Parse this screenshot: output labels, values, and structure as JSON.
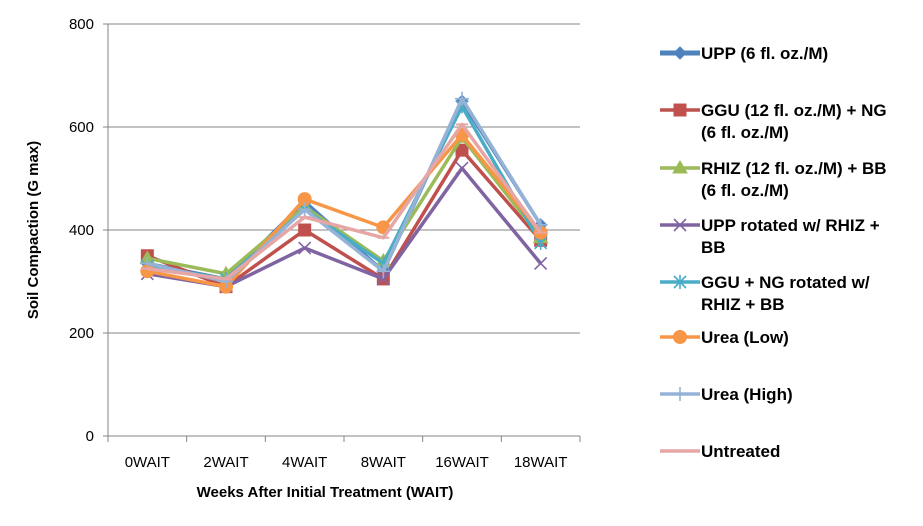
{
  "chart_data": {
    "type": "line",
    "title": "",
    "xlabel": "Weeks After Initial Treatment (WAIT)",
    "ylabel": "Soil Compaction (G max)",
    "categories": [
      "0WAIT",
      "2WAIT",
      "4WAIT",
      "8WAIT",
      "16WAIT",
      "18WAIT"
    ],
    "ylim": [
      0,
      800
    ],
    "yticks": [
      0,
      200,
      400,
      600,
      800
    ],
    "grid": true,
    "legend_position": "right",
    "series": [
      {
        "name": "UPP (6 fl. oz./M)",
        "color": "#4f81bd",
        "marker": "diamond",
        "values": [
          335,
          305,
          455,
          320,
          650,
          410
        ]
      },
      {
        "name": "GGU (12 fl. oz./M) + NG (6 fl. oz./M)",
        "color": "#c0504d",
        "marker": "square",
        "values": [
          350,
          290,
          400,
          305,
          555,
          380
        ]
      },
      {
        "name": "RHIZ (12 fl. oz./M) + BB (6 fl. oz./M)",
        "color": "#9bbb59",
        "marker": "triangle",
        "values": [
          345,
          315,
          445,
          340,
          580,
          385
        ]
      },
      {
        "name": "UPP rotated w/ RHIZ + BB",
        "color": "#8064a2",
        "marker": "x",
        "values": [
          315,
          290,
          365,
          305,
          520,
          335
        ]
      },
      {
        "name": "GGU + NG rotated w/ RHIZ + BB",
        "color": "#4bacc6",
        "marker": "star",
        "values": [
          330,
          305,
          440,
          335,
          640,
          375
        ]
      },
      {
        "name": "Urea (Low)",
        "color": "#f79646",
        "marker": "circle",
        "values": [
          320,
          290,
          460,
          405,
          585,
          395
        ]
      },
      {
        "name": "Urea (High)",
        "color": "#95b3d7",
        "marker": "plus",
        "values": [
          335,
          300,
          440,
          320,
          655,
          410
        ]
      },
      {
        "name": "Untreated",
        "color": "#e6a6a6",
        "marker": "dash",
        "values": [
          325,
          305,
          425,
          385,
          605,
          395
        ]
      }
    ],
    "legend_lines": [
      [
        "UPP (6 fl. oz./M)"
      ],
      [
        "GGU (12 fl. oz./M) + NG",
        "(6 fl. oz./M)"
      ],
      [
        "RHIZ (12 fl. oz./M) + BB",
        "(6 fl. oz./M)"
      ],
      [
        "UPP rotated w/ RHIZ +",
        "BB"
      ],
      [
        "GGU + NG rotated w/",
        "RHIZ + BB"
      ],
      [
        "Urea (Low)"
      ],
      [
        "Urea (High)"
      ],
      [
        "Untreated"
      ]
    ]
  }
}
